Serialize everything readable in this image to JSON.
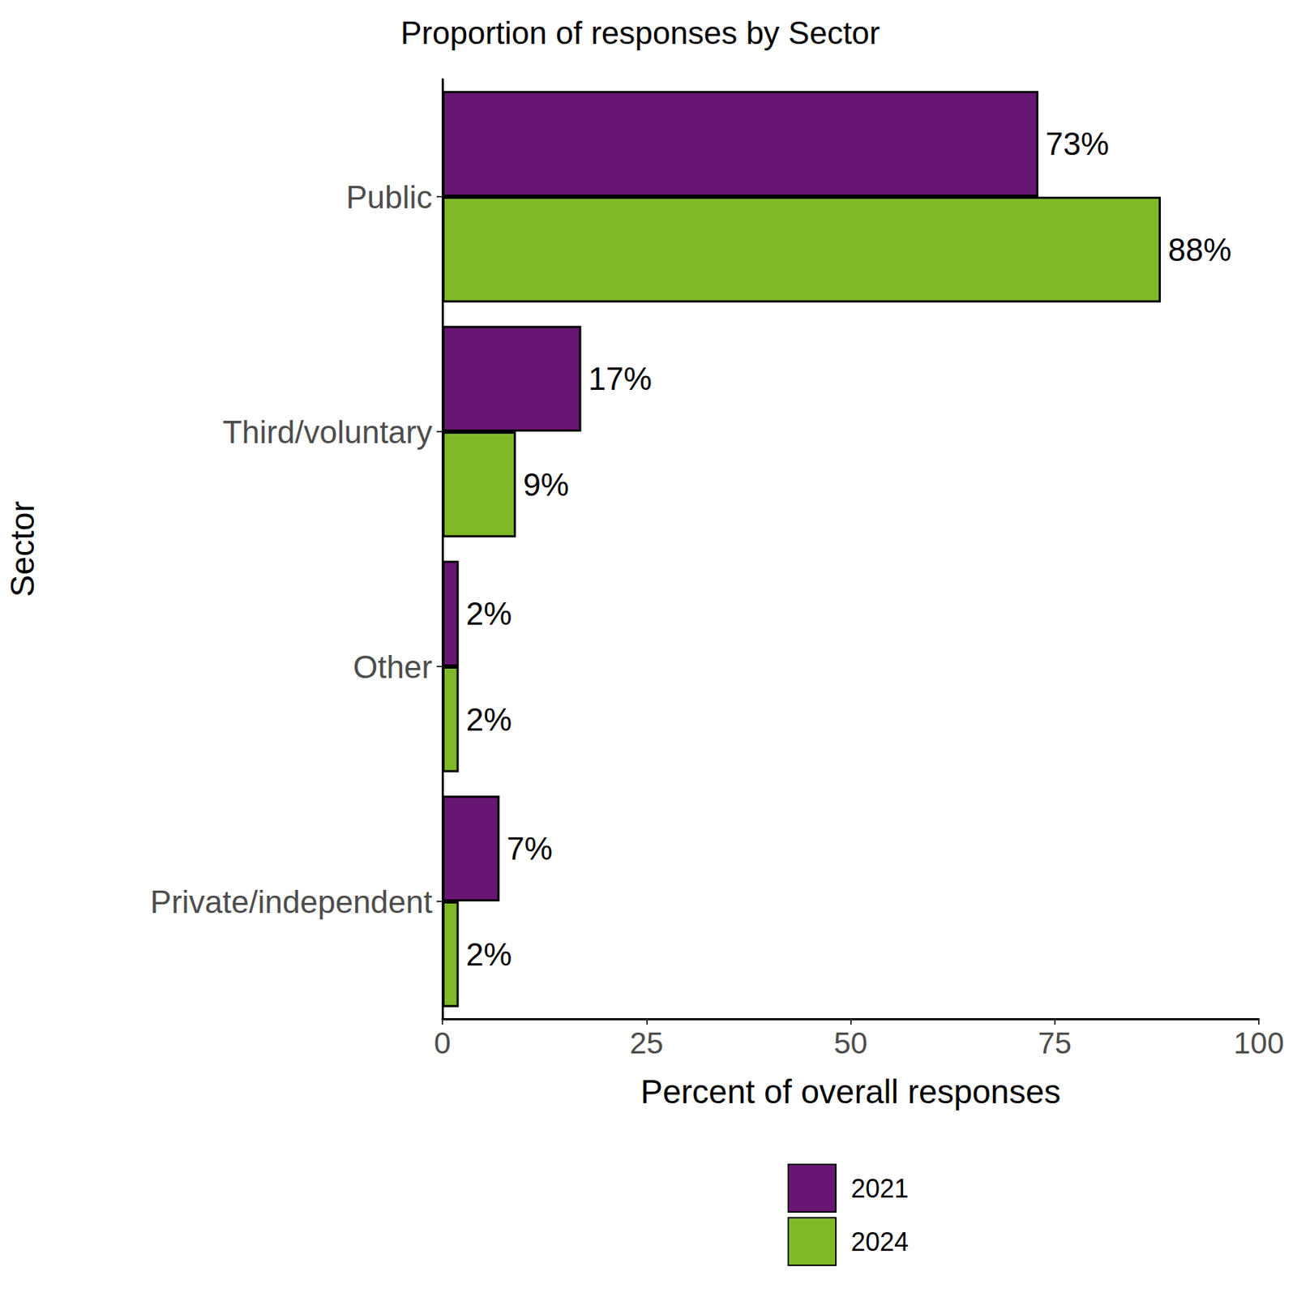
{
  "chart_data": {
    "type": "bar",
    "title": "Proportion of responses by Sector",
    "orientation": "horizontal",
    "categories": [
      "Public",
      "Third/voluntary",
      "Other",
      "Private/independent"
    ],
    "x_label": "Percent of overall responses",
    "y_label": "Sector",
    "series": [
      {
        "name": "2021",
        "color": "#681673",
        "values": [
          73,
          17,
          2,
          7
        ],
        "value_labels": [
          "73%",
          "17%",
          "2%",
          "7%"
        ]
      },
      {
        "name": "2024",
        "color": "#80b927",
        "values": [
          88,
          9,
          2,
          2
        ],
        "value_labels": [
          "88%",
          "9%",
          "2%",
          "2%"
        ]
      }
    ],
    "xlim": [
      0,
      100
    ],
    "xticks": [
      0,
      25,
      50,
      75,
      100
    ],
    "grid": false,
    "legend": "bottom",
    "data_labels": true
  }
}
